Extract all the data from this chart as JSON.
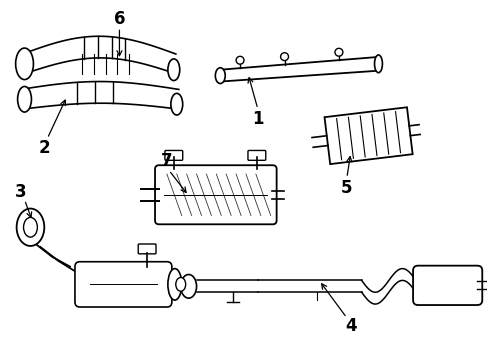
{
  "background_color": "#ffffff",
  "line_color": "#000000",
  "label_fontsize": 12,
  "figsize": [
    4.9,
    3.6
  ],
  "dpi": 100
}
